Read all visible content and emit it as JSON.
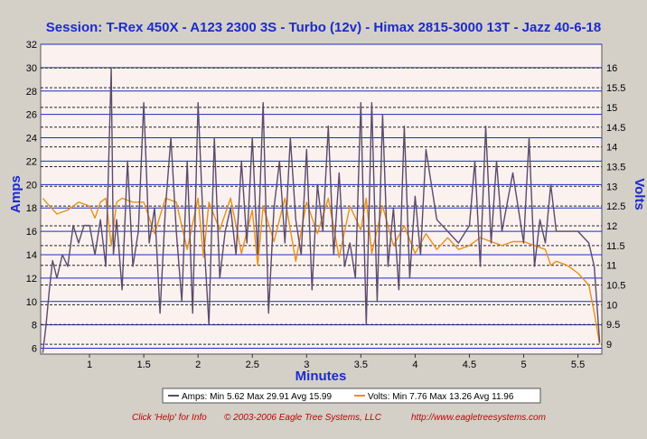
{
  "chart_data": {
    "type": "line",
    "title": "Session: T-Rex 450X - A123 2300 3S - Turbo (12v) - Himax 2815-3000 13T - Jazz 40-6-18",
    "xlabel": "Minutes",
    "ylabel_left": "Amps",
    "ylabel_right": "Volts",
    "xlim": [
      0.55,
      5.72
    ],
    "ylim_left": [
      5.5,
      32
    ],
    "ylim_right": [
      8.75,
      16.6
    ],
    "x_ticks": [
      1,
      1.5,
      2,
      2.5,
      3,
      3.5,
      4,
      4.5,
      5,
      5.5
    ],
    "x_tick_labels": [
      "1",
      "1.5",
      "2",
      "2.5",
      "3",
      "3.5",
      "4",
      "4.5",
      "5",
      "5.5"
    ],
    "y_left_ticks": [
      6,
      8,
      10,
      12,
      14,
      16,
      18,
      20,
      22,
      24,
      26,
      28,
      30,
      32
    ],
    "y_left_tick_labels": [
      "6",
      "8",
      "10",
      "12",
      "14",
      "16",
      "18",
      "20",
      "22",
      "24",
      "26",
      "28",
      "30",
      "32"
    ],
    "y_right_ticks": [
      9,
      9.5,
      10,
      10.5,
      11,
      11.5,
      12,
      12.5,
      13,
      13.5,
      14,
      14.5,
      15,
      15.5,
      16
    ],
    "y_right_tick_labels": [
      "9",
      "9.5",
      "10",
      "10.5",
      "11",
      "11.5",
      "12",
      "12.5",
      "13",
      "13.5",
      "14",
      "14.5",
      "15",
      "15.5",
      "16"
    ],
    "grid": true,
    "legend_position": "bottom",
    "series": [
      {
        "name": "Amps",
        "axis": "left",
        "color": "#5b4a6b",
        "legend_text": "Amps:  Min 5.62 Max 29.91 Avg 15.99",
        "x": [
          0.57,
          0.6,
          0.63,
          0.66,
          0.7,
          0.75,
          0.8,
          0.85,
          0.9,
          0.95,
          1.0,
          1.05,
          1.1,
          1.15,
          1.2,
          1.22,
          1.25,
          1.3,
          1.35,
          1.4,
          1.45,
          1.5,
          1.55,
          1.6,
          1.65,
          1.7,
          1.75,
          1.8,
          1.85,
          1.9,
          1.95,
          2.0,
          2.05,
          2.1,
          2.15,
          2.2,
          2.25,
          2.3,
          2.35,
          2.4,
          2.45,
          2.5,
          2.55,
          2.6,
          2.65,
          2.7,
          2.75,
          2.8,
          2.85,
          2.9,
          2.95,
          3.0,
          3.05,
          3.1,
          3.15,
          3.2,
          3.25,
          3.3,
          3.35,
          3.4,
          3.45,
          3.5,
          3.55,
          3.6,
          3.65,
          3.7,
          3.75,
          3.8,
          3.85,
          3.9,
          3.95,
          4.0,
          4.05,
          4.1,
          4.2,
          4.3,
          4.4,
          4.5,
          4.55,
          4.6,
          4.65,
          4.7,
          4.75,
          4.8,
          4.9,
          5.0,
          5.05,
          5.1,
          5.15,
          5.2,
          5.25,
          5.3,
          5.4,
          5.5,
          5.6,
          5.65,
          5.7
        ],
        "values": [
          5.6,
          8,
          11,
          13.5,
          12,
          14,
          13,
          16.5,
          15,
          16.5,
          16.5,
          14,
          17,
          13,
          29.9,
          14,
          17,
          11,
          22,
          13,
          16,
          27,
          15,
          18,
          9,
          18,
          24,
          16,
          10,
          22,
          9,
          27,
          16,
          8,
          24,
          12,
          16,
          18,
          14,
          22,
          15,
          24,
          14,
          27,
          9,
          18,
          22,
          15,
          24,
          17,
          14,
          23,
          11,
          20,
          16,
          25,
          14,
          21,
          13,
          15,
          12,
          27,
          8,
          27,
          10,
          26,
          13,
          18,
          11,
          25,
          12,
          19,
          14,
          23,
          17,
          16,
          15,
          16.5,
          22,
          13,
          25,
          15,
          22,
          16,
          21,
          15,
          24,
          13,
          17,
          15,
          20,
          16,
          16,
          16,
          15,
          13,
          6.5
        ]
      },
      {
        "name": "Volts",
        "axis": "right",
        "color": "#e8901a",
        "legend_text": "Volts:  Min 7.76 Max 13.26 Avg 11.96",
        "x": [
          0.57,
          0.6,
          0.7,
          0.8,
          0.9,
          1.0,
          1.05,
          1.1,
          1.15,
          1.2,
          1.25,
          1.3,
          1.4,
          1.5,
          1.6,
          1.7,
          1.8,
          1.9,
          2.0,
          2.05,
          2.1,
          2.2,
          2.3,
          2.4,
          2.5,
          2.55,
          2.6,
          2.7,
          2.8,
          2.9,
          3.0,
          3.1,
          3.2,
          3.3,
          3.4,
          3.5,
          3.55,
          3.6,
          3.7,
          3.8,
          3.9,
          4.0,
          4.1,
          4.2,
          4.3,
          4.4,
          4.5,
          4.6,
          4.7,
          4.8,
          4.9,
          5.0,
          5.1,
          5.2,
          5.25,
          5.3,
          5.4,
          5.5,
          5.6,
          5.65,
          5.7
        ],
        "values": [
          12.7,
          12.6,
          12.3,
          12.4,
          12.6,
          12.5,
          12.2,
          12.6,
          12.7,
          11.5,
          12.6,
          12.7,
          12.6,
          12.6,
          11.8,
          12.7,
          12.6,
          11.4,
          12.7,
          11.2,
          12.6,
          11.9,
          12.7,
          11.3,
          12.4,
          11.0,
          12.5,
          11.6,
          12.7,
          11.1,
          12.6,
          11.8,
          12.7,
          11.2,
          12.5,
          11.9,
          12.7,
          11.3,
          12.5,
          11.5,
          12.0,
          11.3,
          11.8,
          11.4,
          11.7,
          11.4,
          11.5,
          11.7,
          11.6,
          11.5,
          11.6,
          11.6,
          11.5,
          11.4,
          11.0,
          11.1,
          11.0,
          10.8,
          10.5,
          9.8,
          9.0
        ]
      }
    ]
  },
  "footer": {
    "help": "Click 'Help' for Info",
    "copyright": "© 2003-2006 Eagle Tree Systems, LLC",
    "url": "http://www.eagletreesystems.com"
  }
}
